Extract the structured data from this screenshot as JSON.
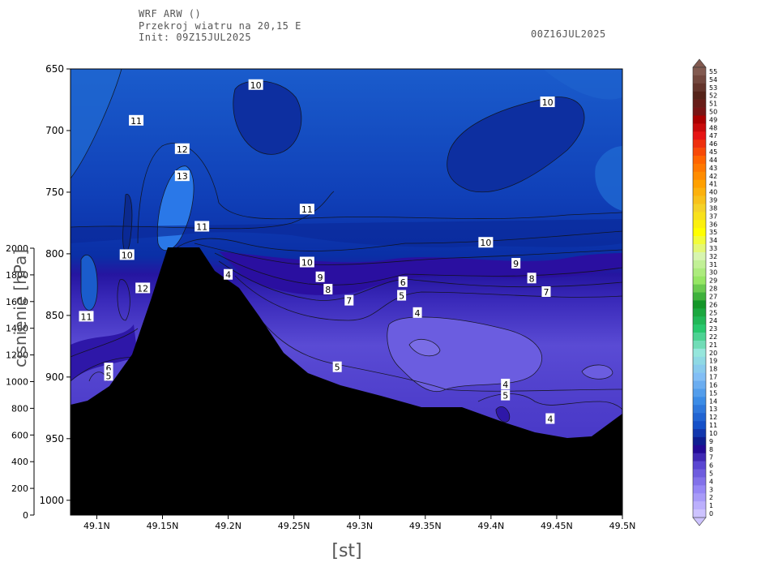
{
  "header": {
    "line1": "WRF ARW ()",
    "line2": "Przekroj wiatru na 20,15 E",
    "line3": "Init: 09Z15JUL2025",
    "valid_time": "00Z16JUL2025"
  },
  "chart_data": {
    "type": "contour",
    "x_axis": {
      "label": "[st]",
      "range": [
        49.08,
        49.5
      ],
      "ticks": [
        49.1,
        49.15,
        49.2,
        49.25,
        49.3,
        49.35,
        49.4,
        49.45,
        49.5
      ],
      "tick_labels": [
        "49.1N",
        "49.15N",
        "49.2N",
        "49.25N",
        "49.3N",
        "49.35N",
        "49.4N",
        "49.45N",
        "49.5N"
      ]
    },
    "y_axis_pressure": {
      "range": [
        650,
        1012
      ],
      "ticks": [
        650,
        700,
        750,
        800,
        850,
        900,
        950,
        1000
      ],
      "tick_labels": [
        "650",
        "700",
        "750",
        "800",
        "850",
        "900",
        "950",
        "1000"
      ]
    },
    "y_axis_height": {
      "label": "cisnienie [hPa]",
      "range": [
        0,
        2000
      ],
      "ticks": [
        0,
        200,
        400,
        600,
        800,
        1000,
        1200,
        1400,
        1600,
        1800,
        2000
      ],
      "tick_labels": [
        "0",
        "200",
        "400",
        "600",
        "800",
        "1000",
        "1200",
        "1400",
        "1600",
        "1800",
        "2000"
      ]
    },
    "contour_labels": [
      {
        "x": 49.221,
        "p": 663,
        "v": "10"
      },
      {
        "x": 49.443,
        "p": 677,
        "v": "10"
      },
      {
        "x": 49.13,
        "p": 692,
        "v": "11"
      },
      {
        "x": 49.165,
        "p": 715,
        "v": "12"
      },
      {
        "x": 49.165,
        "p": 737,
        "v": "13"
      },
      {
        "x": 49.26,
        "p": 764,
        "v": "11"
      },
      {
        "x": 49.18,
        "p": 778,
        "v": "11"
      },
      {
        "x": 49.396,
        "p": 791,
        "v": "10"
      },
      {
        "x": 49.123,
        "p": 801,
        "v": "10"
      },
      {
        "x": 49.26,
        "p": 807,
        "v": "10"
      },
      {
        "x": 49.419,
        "p": 808,
        "v": "9"
      },
      {
        "x": 49.27,
        "p": 819,
        "v": "9"
      },
      {
        "x": 49.2,
        "p": 817,
        "v": "4"
      },
      {
        "x": 49.333,
        "p": 823,
        "v": "6"
      },
      {
        "x": 49.431,
        "p": 820,
        "v": "8"
      },
      {
        "x": 49.135,
        "p": 828,
        "v": "12"
      },
      {
        "x": 49.276,
        "p": 829,
        "v": "8"
      },
      {
        "x": 49.332,
        "p": 834,
        "v": "5"
      },
      {
        "x": 49.442,
        "p": 831,
        "v": "7"
      },
      {
        "x": 49.292,
        "p": 838,
        "v": "7"
      },
      {
        "x": 49.344,
        "p": 848,
        "v": "4"
      },
      {
        "x": 49.092,
        "p": 851,
        "v": "11"
      },
      {
        "x": 49.283,
        "p": 892,
        "v": "5"
      },
      {
        "x": 49.109,
        "p": 893,
        "v": "6"
      },
      {
        "x": 49.109,
        "p": 899,
        "v": "5"
      },
      {
        "x": 49.411,
        "p": 906,
        "v": "4"
      },
      {
        "x": 49.411,
        "p": 915,
        "v": "5"
      },
      {
        "x": 49.445,
        "p": 934,
        "v": "4"
      }
    ],
    "colorbar": {
      "min": 0,
      "max": 55,
      "labels": [
        "55",
        "54",
        "53",
        "52",
        "51",
        "50",
        "49",
        "48",
        "47",
        "46",
        "45",
        "44",
        "43",
        "42",
        "41",
        "40",
        "39",
        "38",
        "37",
        "36",
        "35",
        "34",
        "33",
        "32",
        "31",
        "30",
        "29",
        "28",
        "27",
        "26",
        "25",
        "24",
        "23",
        "22",
        "21",
        "20",
        "19",
        "18",
        "17",
        "16",
        "15",
        "14",
        "13",
        "12",
        "11",
        "10",
        "9",
        "8",
        "7",
        "6",
        "5",
        "4",
        "3",
        "2",
        "1",
        "0"
      ]
    }
  }
}
